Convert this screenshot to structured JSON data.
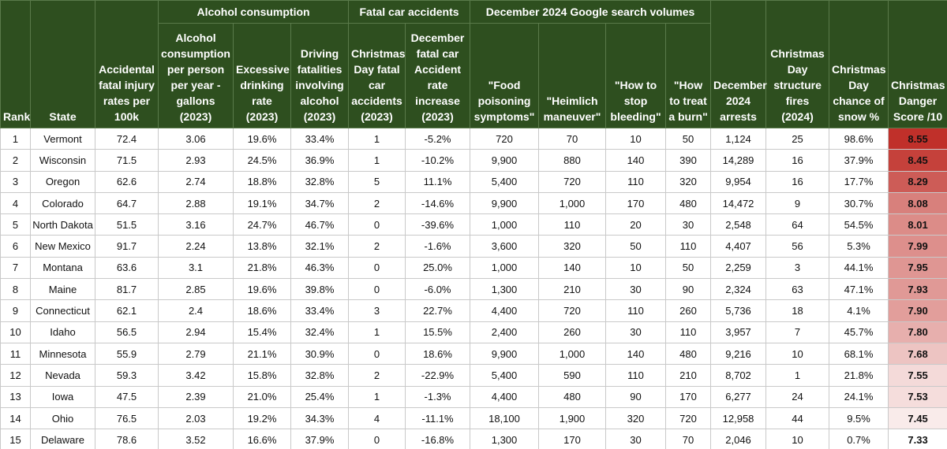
{
  "header": {
    "groups": [
      "Alcohol consumption",
      "Fatal car accidents",
      "December 2024 Google search volumes"
    ],
    "columns": [
      "Rank",
      "State",
      "Accidental fatal injury rates per 100k",
      "Alcohol consumption per person per year - gallons (2023)",
      "Excessive drinking rate (2023)",
      "Driving fatalities involving alcohol (2023)",
      "Christmas Day fatal car accidents (2023)",
      "December fatal car Accident rate increase (2023)",
      "\"Food poisoning symptoms\"",
      "\"Heimlich maneuver\"",
      "\"How to stop bleeding\"",
      "\"How to treat a burn\"",
      "December 2024 arrests",
      "Christmas Day structure fires (2024)",
      "Christmas Day chance of snow %",
      "Christmas Danger Score /10"
    ]
  },
  "table": {
    "rows": [
      [
        "1",
        "Vermont",
        "72.4",
        "3.06",
        "19.6%",
        "33.4%",
        "1",
        "-5.2%",
        "720",
        "70",
        "10",
        "50",
        "1,124",
        "25",
        "98.6%",
        "8.55"
      ],
      [
        "2",
        "Wisconsin",
        "71.5",
        "2.93",
        "24.5%",
        "36.9%",
        "1",
        "-10.2%",
        "9,900",
        "880",
        "140",
        "390",
        "14,289",
        "16",
        "37.9%",
        "8.45"
      ],
      [
        "3",
        "Oregon",
        "62.6",
        "2.74",
        "18.8%",
        "32.8%",
        "5",
        "11.1%",
        "5,400",
        "720",
        "110",
        "320",
        "9,954",
        "16",
        "17.7%",
        "8.29"
      ],
      [
        "4",
        "Colorado",
        "64.7",
        "2.88",
        "19.1%",
        "34.7%",
        "2",
        "-14.6%",
        "9,900",
        "1,000",
        "170",
        "480",
        "14,472",
        "9",
        "30.7%",
        "8.08"
      ],
      [
        "5",
        "North Dakota",
        "51.5",
        "3.16",
        "24.7%",
        "46.7%",
        "0",
        "-39.6%",
        "1,000",
        "110",
        "20",
        "30",
        "2,548",
        "64",
        "54.5%",
        "8.01"
      ],
      [
        "6",
        "New Mexico",
        "91.7",
        "2.24",
        "13.8%",
        "32.1%",
        "2",
        "-1.6%",
        "3,600",
        "320",
        "50",
        "110",
        "4,407",
        "56",
        "5.3%",
        "7.99"
      ],
      [
        "7",
        "Montana",
        "63.6",
        "3.1",
        "21.8%",
        "46.3%",
        "0",
        "25.0%",
        "1,000",
        "140",
        "10",
        "50",
        "2,259",
        "3",
        "44.1%",
        "7.95"
      ],
      [
        "8",
        "Maine",
        "81.7",
        "2.85",
        "19.6%",
        "39.8%",
        "0",
        "-6.0%",
        "1,300",
        "210",
        "30",
        "90",
        "2,324",
        "63",
        "47.1%",
        "7.93"
      ],
      [
        "9",
        "Connecticut",
        "62.1",
        "2.4",
        "18.6%",
        "33.4%",
        "3",
        "22.7%",
        "4,400",
        "720",
        "110",
        "260",
        "5,736",
        "18",
        "4.1%",
        "7.90"
      ],
      [
        "10",
        "Idaho",
        "56.5",
        "2.94",
        "15.4%",
        "32.4%",
        "1",
        "15.5%",
        "2,400",
        "260",
        "30",
        "110",
        "3,957",
        "7",
        "45.7%",
        "7.80"
      ],
      [
        "11",
        "Minnesota",
        "55.9",
        "2.79",
        "21.1%",
        "30.9%",
        "0",
        "18.6%",
        "9,900",
        "1,000",
        "140",
        "480",
        "9,216",
        "10",
        "68.1%",
        "7.68"
      ],
      [
        "12",
        "Nevada",
        "59.3",
        "3.42",
        "15.8%",
        "32.8%",
        "2",
        "-22.9%",
        "5,400",
        "590",
        "110",
        "210",
        "8,702",
        "1",
        "21.8%",
        "7.55"
      ],
      [
        "13",
        "Iowa",
        "47.5",
        "2.39",
        "21.0%",
        "25.4%",
        "1",
        "-1.3%",
        "4,400",
        "480",
        "90",
        "170",
        "6,277",
        "24",
        "24.1%",
        "7.53"
      ],
      [
        "14",
        "Ohio",
        "76.5",
        "2.03",
        "19.2%",
        "34.3%",
        "4",
        "-11.1%",
        "18,100",
        "1,900",
        "320",
        "720",
        "12,958",
        "44",
        "9.5%",
        "7.45"
      ],
      [
        "15",
        "Delaware",
        "78.6",
        "3.52",
        "16.6%",
        "37.9%",
        "0",
        "-16.8%",
        "1,300",
        "170",
        "30",
        "70",
        "2,046",
        "10",
        "0.7%",
        "7.33"
      ]
    ]
  }
}
